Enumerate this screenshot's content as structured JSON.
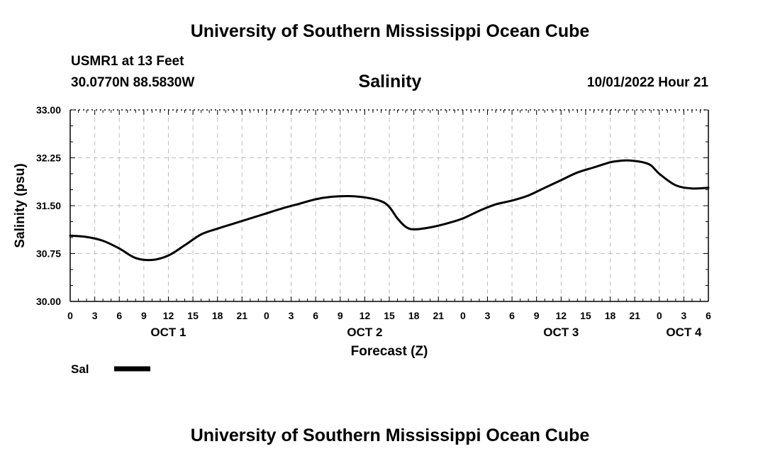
{
  "header": {
    "title": "University of Southern Mississippi Ocean Cube",
    "station": "USMR1 at 13 Feet",
    "coords": "30.0770N  88.5830W",
    "datetime": "10/01/2022 Hour 21"
  },
  "footer": {
    "title": "University of Southern Mississippi Ocean Cube"
  },
  "colors": {
    "line": "#000000",
    "grid": "#bdbdbd",
    "background": "#ffffff"
  },
  "chart_data": {
    "type": "line",
    "title": "Salinity",
    "xlabel": "Forecast (Z)",
    "ylabel": "Salinity (psu)",
    "ylim": [
      30.0,
      33.0
    ],
    "yticks": [
      "30.00",
      "30.75",
      "31.50",
      "32.25",
      "33.00"
    ],
    "y_tick_values": [
      30.0,
      30.75,
      31.5,
      32.25,
      33.0
    ],
    "xlim": [
      0,
      78
    ],
    "x_tick_labels": [
      "0",
      "3",
      "6",
      "9",
      "12",
      "15",
      "18",
      "21",
      "0",
      "3",
      "6",
      "9",
      "12",
      "15",
      "18",
      "21",
      "0",
      "3",
      "6",
      "9",
      "12",
      "15",
      "18",
      "21",
      "0",
      "3",
      "6"
    ],
    "x_tick_hours": [
      0,
      3,
      6,
      9,
      12,
      15,
      18,
      21,
      24,
      27,
      30,
      33,
      36,
      39,
      42,
      45,
      48,
      51,
      54,
      57,
      60,
      63,
      66,
      69,
      72,
      75,
      78
    ],
    "day_labels": [
      {
        "label": "OCT 1",
        "hour": 12
      },
      {
        "label": "OCT 2",
        "hour": 36
      },
      {
        "label": "OCT 3",
        "hour": 60
      },
      {
        "label": "OCT 4",
        "hour": 75
      }
    ],
    "grid": true,
    "legend": [
      {
        "name": "Sal"
      }
    ],
    "series": [
      {
        "name": "Sal",
        "x": [
          0,
          2,
          4,
          6,
          8,
          10,
          12,
          14,
          16,
          18,
          20,
          22,
          24,
          26,
          28,
          30,
          32,
          34,
          36,
          38,
          39,
          40,
          41,
          42,
          44,
          46,
          48,
          50,
          52,
          54,
          56,
          58,
          60,
          62,
          64,
          66,
          67,
          68,
          69,
          70,
          71,
          72,
          74,
          76,
          78
        ],
        "values": [
          31.03,
          31.01,
          30.95,
          30.83,
          30.68,
          30.65,
          30.72,
          30.88,
          31.05,
          31.14,
          31.22,
          31.3,
          31.38,
          31.46,
          31.53,
          31.6,
          31.64,
          31.65,
          31.63,
          31.57,
          31.48,
          31.3,
          31.17,
          31.13,
          31.16,
          31.22,
          31.3,
          31.42,
          31.52,
          31.58,
          31.66,
          31.78,
          31.9,
          32.02,
          32.1,
          32.18,
          32.2,
          32.21,
          32.2,
          32.18,
          32.13,
          32.0,
          31.82,
          31.77,
          31.78
        ]
      }
    ]
  }
}
